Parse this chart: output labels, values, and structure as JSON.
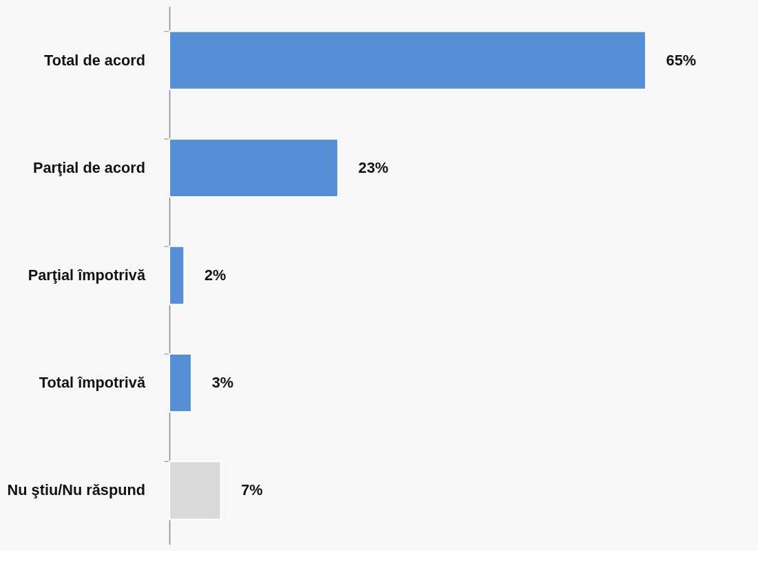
{
  "chart_data": {
    "type": "bar",
    "orientation": "horizontal",
    "categories": [
      "Total de acord",
      "Parţial de acord",
      "Parţial împotrivă",
      "Total împotrivă",
      "Nu ştiu/Nu răspund"
    ],
    "values": [
      65,
      23,
      2,
      3,
      7
    ],
    "colors": [
      "#558ed5",
      "#558ed5",
      "#558ed5",
      "#558ed5",
      "#d9d9d9"
    ],
    "value_labels": [
      "65%",
      "23%",
      "2%",
      "3%",
      "7%"
    ],
    "grid": false
  }
}
